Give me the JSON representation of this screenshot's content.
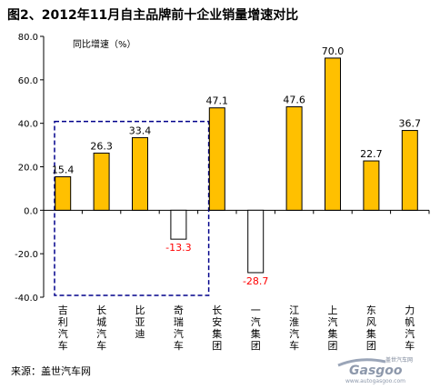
{
  "title": "图2、2012年11月自主品牌前十企业销量增速对比",
  "source": "来源：盖世汽车网",
  "watermark": {
    "brand_cn": "盖世汽车网",
    "brand": "Gasgoo",
    "url": "www.autogasgoo.com"
  },
  "chart_data": {
    "type": "bar",
    "ylabel": "同比增速（%）",
    "ylim": [
      -40,
      80
    ],
    "yticks": [
      "80.0",
      "60.0",
      "40.0",
      "20.0",
      "0.0",
      "-20.0",
      "-40.0"
    ],
    "ytick_values": [
      80,
      60,
      40,
      20,
      0,
      -20,
      -40
    ],
    "categories": [
      "吉利汽车",
      "长城汽车",
      "比亚迪",
      "奇瑞汽车",
      "长安集团",
      "一汽集团",
      "江淮汽车",
      "上汽集团",
      "东风集团",
      "力帆汽车"
    ],
    "values": [
      15.4,
      26.3,
      33.4,
      -13.3,
      47.1,
      -28.7,
      47.6,
      70.0,
      22.7,
      36.7
    ],
    "value_labels": [
      "15.4",
      "26.3",
      "33.4",
      "-13.3",
      "47.1",
      "-28.7",
      "47.6",
      "70.0",
      "22.7",
      "36.7"
    ],
    "colors": {
      "positive_fill": "#FFC000",
      "positive_stroke": "#000000",
      "negative_fill": "#FFFFFF",
      "negative_label": "#FF0000",
      "highlight_box": "#00008B"
    },
    "highlight_group": [
      0,
      1,
      2,
      3
    ]
  }
}
